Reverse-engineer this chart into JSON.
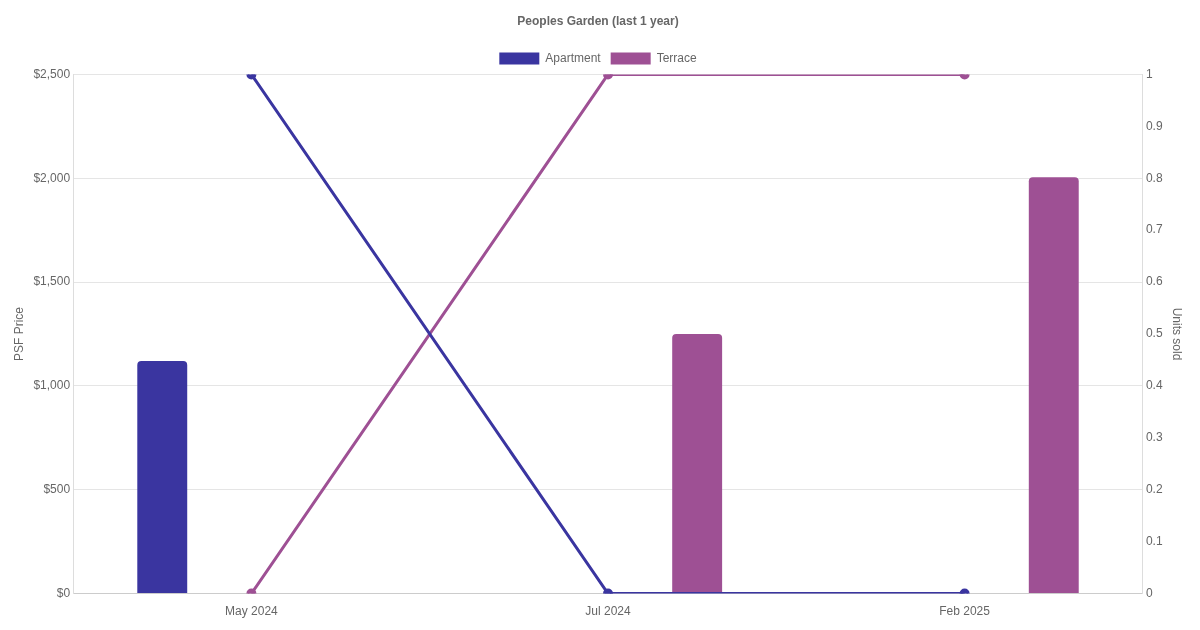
{
  "chart_data": {
    "type": "bar",
    "title": "Peoples Garden (last 1 year)",
    "ylabel": "PSF Price",
    "y2label": "Units sold",
    "categories": [
      "May 2024",
      "Jul 2024",
      "Feb 2025"
    ],
    "series": [
      {
        "name": "Apartment",
        "color": "#3a35a0",
        "values": [
          1120,
          null,
          null
        ]
      },
      {
        "name": "Terrace",
        "color": "#9e5094",
        "values": [
          null,
          1250,
          2005
        ]
      },
      {
        "type": "line",
        "axis": "y2",
        "color": "#3a35a0",
        "values": [
          1,
          0,
          0
        ]
      },
      {
        "type": "line",
        "axis": "y2",
        "color": "#9e5094",
        "values": [
          0,
          1,
          1
        ]
      }
    ],
    "ylim": [
      0,
      2500
    ],
    "yticks": [
      {
        "value": 0,
        "label": "$0"
      },
      {
        "value": 500,
        "label": "$500"
      },
      {
        "value": 1000,
        "label": "$1,000"
      },
      {
        "value": 1500,
        "label": "$1,500"
      },
      {
        "value": 2000,
        "label": "$2,000"
      },
      {
        "value": 2500,
        "label": "$2,500"
      }
    ],
    "y2lim": [
      0,
      1
    ],
    "y2ticks": [
      0,
      0.1,
      0.2,
      0.3,
      0.4,
      0.5,
      0.6,
      0.7,
      0.8,
      0.9,
      1
    ],
    "grid": "y",
    "legend": "top",
    "marker": "circle",
    "line_style": "solid"
  }
}
